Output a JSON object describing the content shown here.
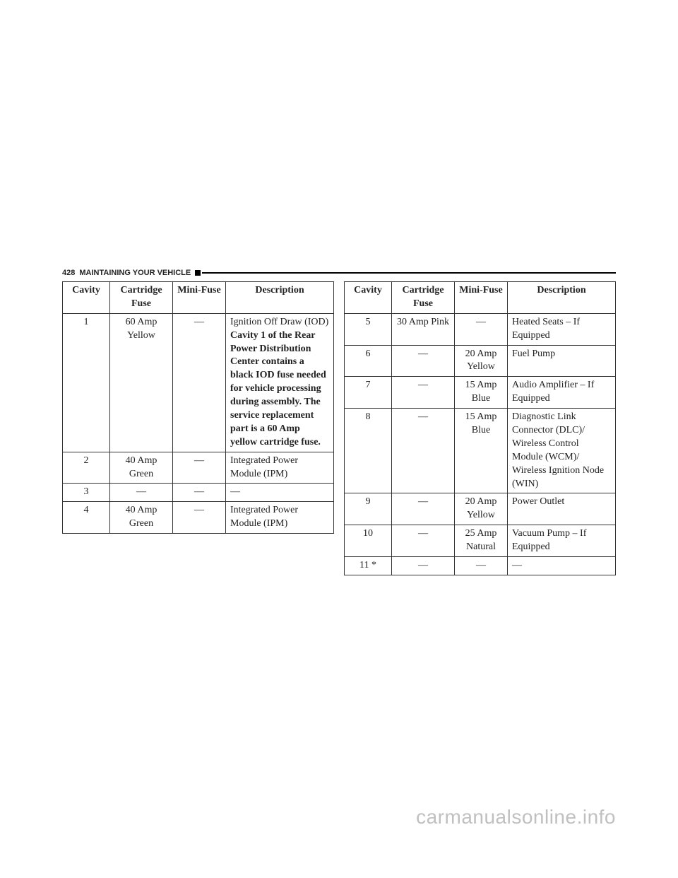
{
  "header": {
    "page_number": "428",
    "section_title": "MAINTAINING YOUR VEHICLE"
  },
  "table_headers": {
    "cavity": "Cavity",
    "cartridge_fuse": "Cartridge Fuse",
    "mini_fuse": "Mini-Fuse",
    "description": "Description"
  },
  "left": [
    {
      "cavity": "1",
      "cartridge": "60 Amp Yellow",
      "mini": "—",
      "desc_prefix": "Ignition Off Draw (IOD) ",
      "desc_bold": "Cavity 1 of the Rear Power Distribution Center contains a black IOD fuse needed for vehicle processing during assembly. The service replacement part is a 60 Amp yellow cartridge fuse."
    },
    {
      "cavity": "2",
      "cartridge": "40 Amp Green",
      "mini": "—",
      "desc_plain": "Integrated Power Module (IPM)"
    },
    {
      "cavity": "3",
      "cartridge": "—",
      "mini": "—",
      "desc_plain": "—"
    },
    {
      "cavity": "4",
      "cartridge": "40 Amp Green",
      "mini": "—",
      "desc_plain": "Integrated Power Module (IPM)"
    }
  ],
  "right": [
    {
      "cavity": "5",
      "cartridge": "30 Amp Pink",
      "mini": "—",
      "desc_plain": "Heated Seats – If Equipped"
    },
    {
      "cavity": "6",
      "cartridge": "—",
      "mini": "20 Amp Yellow",
      "desc_plain": "Fuel Pump"
    },
    {
      "cavity": "7",
      "cartridge": "—",
      "mini": "15 Amp Blue",
      "desc_plain": "Audio Amplifier – If Equipped"
    },
    {
      "cavity": "8",
      "cartridge": "—",
      "mini": "15 Amp Blue",
      "desc_plain": "Diagnostic Link Connector (DLC)/ Wireless Control Module (WCM)/ Wireless Ignition Node (WIN)"
    },
    {
      "cavity": "9",
      "cartridge": "—",
      "mini": "20 Amp Yellow",
      "desc_plain": "Power Outlet"
    },
    {
      "cavity": "10",
      "cartridge": "—",
      "mini": "25 Amp Natural",
      "desc_plain": "Vacuum Pump – If Equipped"
    },
    {
      "cavity": "11 *",
      "cartridge": "—",
      "mini": "—",
      "desc_plain": "—"
    }
  ],
  "watermark": "carmanualsonline.info"
}
